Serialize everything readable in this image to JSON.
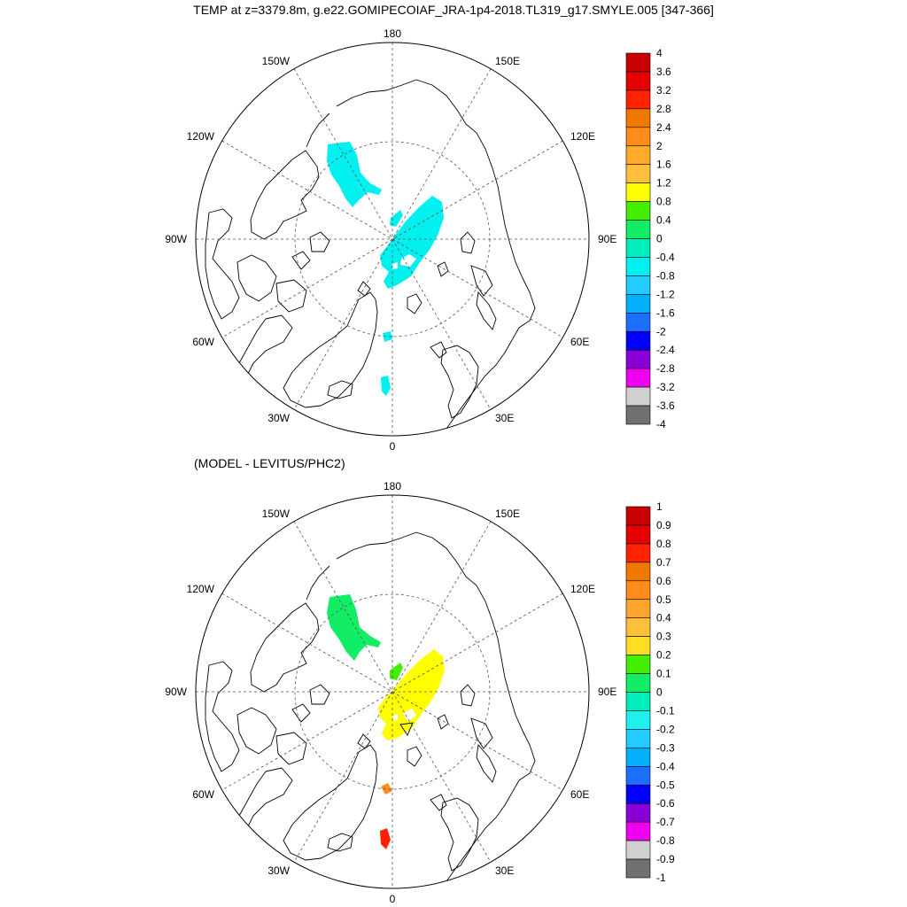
{
  "title": "TEMP at z=3379.8m, g.e22.GOMIPECOIAF_JRA-1p4-2018.TL319_g17.SMYLE.005 [347-366]",
  "subtitle": "(MODEL - LEVITUS/PHC2)",
  "lon_labels": {
    "top": "180",
    "bottom": "0",
    "left": "90W",
    "right": "90E",
    "upper_left": "150W",
    "upper_right": "150E",
    "mid_upper_left": "120W",
    "mid_upper_right": "120E",
    "mid_lower_left": "60W",
    "mid_lower_right": "60E",
    "lower_left": "30W",
    "lower_right": "30E"
  },
  "maps": [
    {
      "name": "model-temperature",
      "colorbar": {
        "labels": [
          "4",
          "3.6",
          "3.2",
          "2.8",
          "2.4",
          "2",
          "1.6",
          "1.2",
          "0.8",
          "0.4",
          "0",
          "-0.4",
          "-0.8",
          "-1.2",
          "-1.6",
          "-2",
          "-2.4",
          "-2.8",
          "-3.2",
          "-3.6",
          "-4"
        ],
        "colors": [
          "#c80000",
          "#e60000",
          "#ff2200",
          "#f07800",
          "#ff8c1a",
          "#ffaa2b",
          "#ffbf3c",
          "#ffff00",
          "#44ee00",
          "#11ee66",
          "#00eebb",
          "#00f0ef",
          "#22ccff",
          "#00b0ff",
          "#1e6eff",
          "#0000ff",
          "#8b00d6",
          "#ee00ee",
          "#d0d0d0",
          "#707070"
        ]
      },
      "shaded_regions": [
        {
          "name": "beaufort-sea-patch",
          "color": "#00f0ef"
        },
        {
          "name": "central-arctic-patch",
          "color": "#00f0ef"
        },
        {
          "name": "fram-strait-patch",
          "color": "#00f0ef"
        },
        {
          "name": "greenland-sea-patch",
          "color": "#00f0ef"
        }
      ]
    },
    {
      "name": "model-minus-levitus",
      "colorbar": {
        "labels": [
          "1",
          "0.9",
          "0.8",
          "0.7",
          "0.6",
          "0.5",
          "0.4",
          "0.3",
          "0.2",
          "0.1",
          "0",
          "-0.1",
          "-0.2",
          "-0.3",
          "-0.4",
          "-0.5",
          "-0.6",
          "-0.7",
          "-0.8",
          "-0.9",
          "-1"
        ],
        "colors": [
          "#c80000",
          "#e60000",
          "#ff2200",
          "#f07800",
          "#ff8c1a",
          "#ffa52b",
          "#ffbf3c",
          "#ffdd22",
          "#44ee00",
          "#11ee66",
          "#00eebb",
          "#1ef0ef",
          "#22ccff",
          "#00b0ff",
          "#1e6eff",
          "#0000ff",
          "#8b00d6",
          "#ee00ee",
          "#d0d0d0",
          "#707070"
        ]
      },
      "shaded_regions": [
        {
          "name": "beaufort-sea-patch",
          "color": "#11ee66"
        },
        {
          "name": "lomonosov-ridge-patch",
          "color": "#44ee00"
        },
        {
          "name": "central-arctic-patch",
          "color": "#ffff00"
        },
        {
          "name": "fram-strait-patch",
          "color": "#ff8c1a"
        },
        {
          "name": "greenland-sea-patch",
          "color": "#ff2200"
        }
      ]
    }
  ]
}
